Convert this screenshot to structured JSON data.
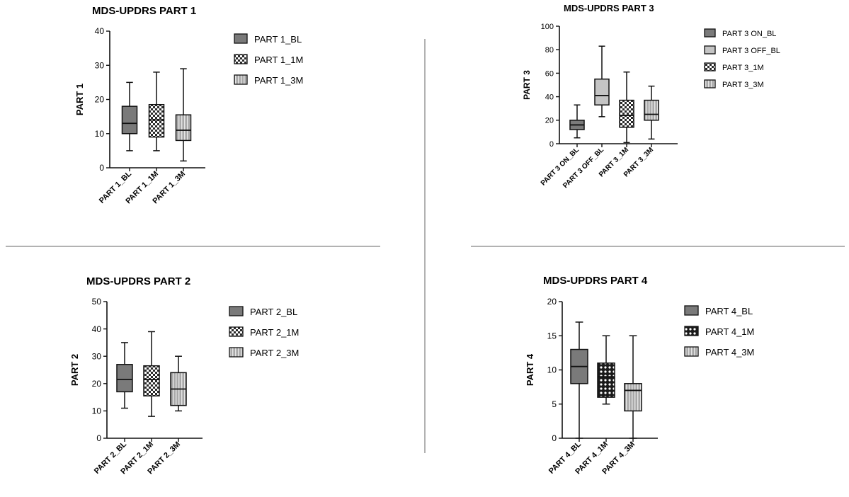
{
  "patterns": {
    "solid_dark": "#7a7a7a",
    "solid_light": "#c4c4c4",
    "checker": "checker",
    "dots": "dots",
    "vstripes": "vstripes"
  },
  "chart_data": [
    {
      "type": "boxplot",
      "title": "MDS-UPDRS PART 1",
      "ylabel": "PART 1",
      "ylim": [
        0,
        40
      ],
      "yticks": [
        0,
        10,
        20,
        30,
        40
      ],
      "grid": false,
      "legend_position": "right",
      "categories": [
        "PART 1_BL",
        "PART 1_1M",
        "PART 1_3M"
      ],
      "series": [
        {
          "name": "PART 1_BL",
          "pattern": "solid_dark",
          "min": 5,
          "q1": 10,
          "median": 13,
          "q3": 18,
          "max": 25
        },
        {
          "name": "PART 1_1M",
          "pattern": "checker",
          "min": 5,
          "q1": 9,
          "median": 14,
          "q3": 18.5,
          "max": 28
        },
        {
          "name": "PART 1_3M",
          "pattern": "vstripes",
          "min": 2,
          "q1": 8,
          "median": 11,
          "q3": 15.5,
          "max": 29
        }
      ]
    },
    {
      "type": "boxplot",
      "title": "MDS-UPDRS PART 3",
      "ylabel": "PART 3",
      "ylim": [
        0,
        100
      ],
      "yticks": [
        0,
        20,
        40,
        60,
        80,
        100
      ],
      "grid": false,
      "legend_position": "right",
      "categories": [
        "PART 3 ON_BL",
        "PART 3 OFF_BL",
        "PART 3_1M",
        "PART 3_3M"
      ],
      "series": [
        {
          "name": "PART 3 ON_BL",
          "pattern": "solid_dark",
          "min": 5,
          "q1": 12,
          "median": 16,
          "q3": 20,
          "max": 33
        },
        {
          "name": "PART 3 OFF_BL",
          "pattern": "solid_light",
          "min": 23,
          "q1": 33,
          "median": 41,
          "q3": 55,
          "max": 83
        },
        {
          "name": "PART 3_1M",
          "pattern": "checker",
          "min": 1,
          "q1": 14,
          "median": 24,
          "q3": 37,
          "max": 61
        },
        {
          "name": "PART 3_3M",
          "pattern": "vstripes",
          "min": 4,
          "q1": 20,
          "median": 25,
          "q3": 37,
          "max": 49
        }
      ]
    },
    {
      "type": "boxplot",
      "title": "MDS-UPDRS PART 2",
      "ylabel": "PART 2",
      "ylim": [
        0,
        50
      ],
      "yticks": [
        0,
        10,
        20,
        30,
        40,
        50
      ],
      "grid": false,
      "legend_position": "right",
      "categories": [
        "PART 2_BL",
        "PART 2_1M",
        "PART 2_3M"
      ],
      "series": [
        {
          "name": "PART 2_BL",
          "pattern": "solid_dark",
          "min": 11,
          "q1": 17,
          "median": 21.5,
          "q3": 27,
          "max": 35
        },
        {
          "name": "PART 2_1M",
          "pattern": "checker",
          "min": 8,
          "q1": 15.5,
          "median": 21.5,
          "q3": 26.5,
          "max": 39
        },
        {
          "name": "PART 2_3M",
          "pattern": "vstripes",
          "min": 10,
          "q1": 12,
          "median": 18,
          "q3": 24,
          "max": 30
        }
      ]
    },
    {
      "type": "boxplot",
      "title": "MDS-UPDRS PART 4",
      "ylabel": "PART 4",
      "ylim": [
        0,
        20
      ],
      "yticks": [
        0,
        5,
        10,
        15,
        20
      ],
      "grid": false,
      "legend_position": "right",
      "categories": [
        "PART 4_BL",
        "PART 4_1M",
        "PART 4_3M"
      ],
      "series": [
        {
          "name": "PART 4_BL",
          "pattern": "solid_dark",
          "min": 0,
          "q1": 8,
          "median": 10.5,
          "q3": 13,
          "max": 17
        },
        {
          "name": "PART 4_1M",
          "pattern": "dots",
          "min": 5,
          "q1": 6,
          "median": 9,
          "q3": 11,
          "max": 15
        },
        {
          "name": "PART 4_3M",
          "pattern": "vstripes",
          "min": 0,
          "q1": 4,
          "median": 7,
          "q3": 8,
          "max": 15
        }
      ]
    }
  ]
}
